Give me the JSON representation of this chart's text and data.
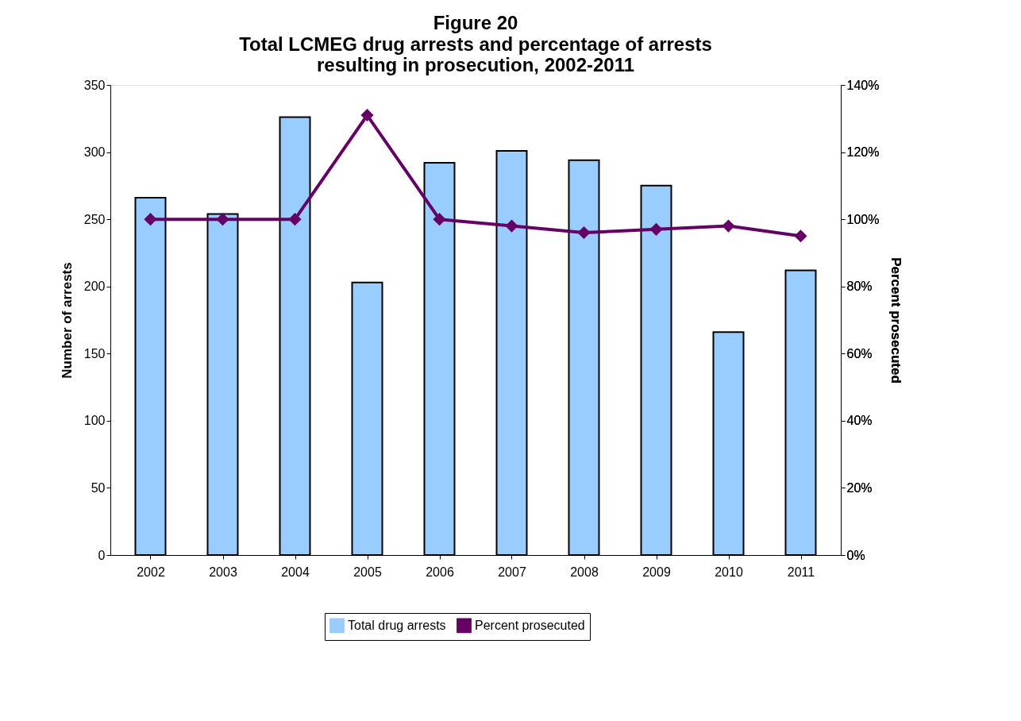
{
  "chart_data": {
    "type": "bar",
    "title": "Figure 20",
    "subtitle": "Total LCMEG drug arrests and percentage of arrests resulting in prosecution, 2002-2011",
    "xlabel": null,
    "ylabel": "Number of arrests",
    "y2label": "Percent prosecuted",
    "categories": [
      "2002",
      "2003",
      "2004",
      "2005",
      "2006",
      "2007",
      "2008",
      "2009",
      "2010",
      "2011"
    ],
    "series": [
      {
        "name": "Total drug arrests",
        "color": "#99ccff",
        "values": [
          266,
          254,
          326,
          203,
          292,
          301,
          294,
          275,
          166,
          212
        ]
      },
      {
        "name": "Percent prosecuted",
        "type": "line",
        "axis": "y2",
        "color": "#660066",
        "marker": "diamond",
        "values": [
          100,
          100,
          100,
          131,
          100,
          98,
          96,
          97,
          98,
          95
        ]
      }
    ],
    "ylim": [
      0,
      350
    ],
    "yticks": [
      0,
      50,
      100,
      150,
      200,
      250,
      300,
      350
    ],
    "y2lim": [
      0,
      140
    ],
    "y2ticks": [
      {
        "value": 0,
        "label": "0%"
      },
      {
        "value": 20,
        "label": "20%"
      },
      {
        "value": 40,
        "label": "40%"
      },
      {
        "value": 60,
        "label": "60%"
      },
      {
        "value": 80,
        "label": "80%"
      },
      {
        "value": 100,
        "label": "100%"
      },
      {
        "value": 120,
        "label": "120%"
      },
      {
        "value": 140,
        "label": "140%"
      }
    ],
    "grid": false,
    "legend": "bottom"
  }
}
